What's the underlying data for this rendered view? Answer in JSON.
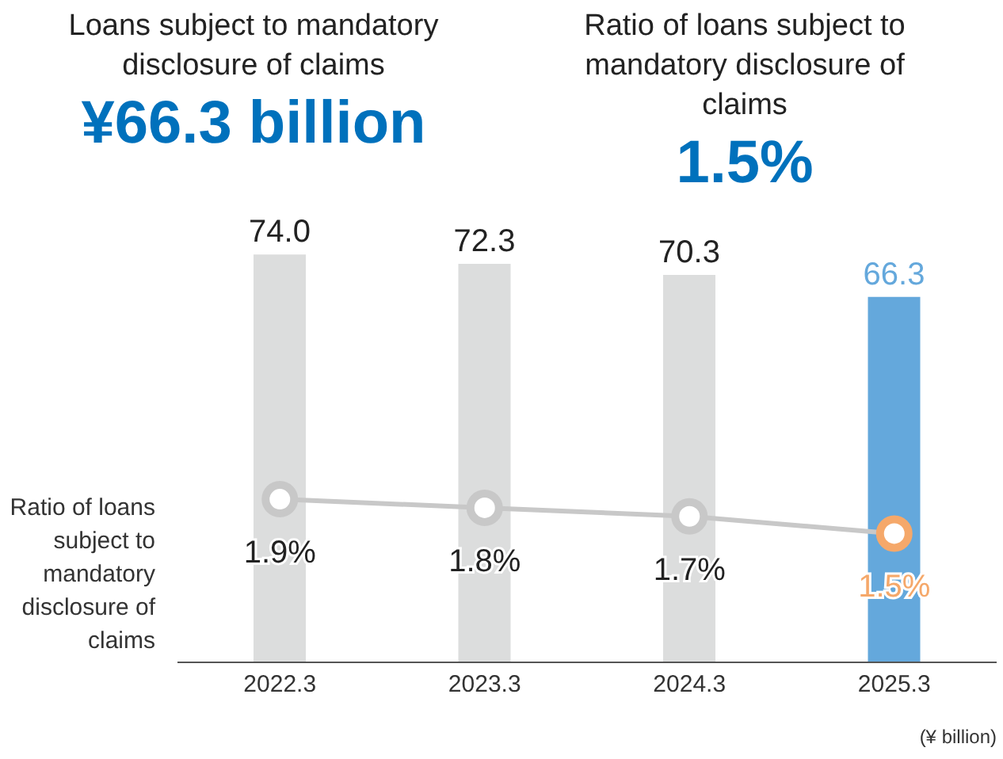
{
  "chart_data": {
    "type": "bar",
    "categories": [
      "2022.3",
      "2023.3",
      "2024.3",
      "2025.3"
    ],
    "series": [
      {
        "color": "#dcdddd",
        "colors": [
          "#dcdddd",
          "#dcdddd",
          "#dcdddd",
          "#64a8dc"
        ],
        "values": [
          74.0,
          72.3,
          70.3,
          66.3
        ],
        "value_labels": [
          "74.0",
          "72.3",
          "70.3",
          "66.3"
        ]
      },
      {
        "type": "line",
        "name": "Ratio of loans subject to mandatory disclosure of claims",
        "axis": "y2",
        "color": "#c8c8c8",
        "colors": [
          "#c8c8c8",
          "#c8c8c8",
          "#c8c8c8",
          "#f5a86a"
        ],
        "values": [
          1.9,
          1.8,
          1.7,
          1.5
        ],
        "value_labels": [
          "1.9%",
          "1.8%",
          "1.7%",
          "1.5%"
        ]
      }
    ],
    "tick_labels": "x",
    "legend": false,
    "marker": "circle",
    "annotations": [
      "Loans subject to mandatory disclosure of claims",
      "¥66.3 billion",
      "Ratio of loans subject to mandatory disclosure of claims",
      "1.5%",
      "(¥ billion)"
    ]
  }
}
